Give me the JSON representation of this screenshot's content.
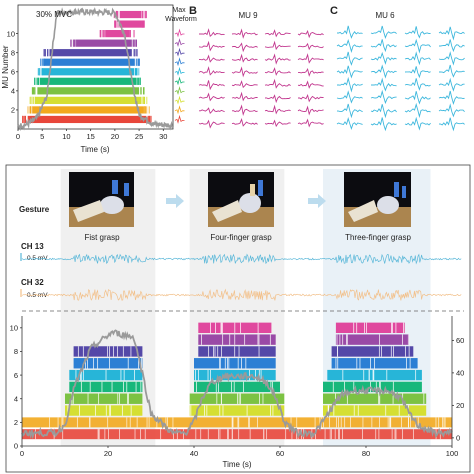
{
  "panel_a": {
    "title": "30% MVC",
    "legend_title_1": "Max",
    "legend_title_2": "Waveform"
  },
  "panel_b": {
    "letter": "B",
    "title": "MU 9"
  },
  "panel_c": {
    "letter": "C",
    "title": "MU 6"
  },
  "panel_d": {
    "gesture_label": "Gesture",
    "gestures": [
      "Fist grasp",
      "Four-finger grasp",
      "Three-finger grasp"
    ],
    "channels": [
      {
        "name": "CH 13",
        "scale": "0.5 mV",
        "color": "#5bb8d9"
      },
      {
        "name": "CH 32",
        "scale": "0.5 mV",
        "color": "#f2c08a"
      }
    ]
  },
  "colors": {
    "mu": [
      "#e8463a",
      "#f2a81e",
      "#d5df33",
      "#7cc243",
      "#18b77b",
      "#27b5d8",
      "#2c7fd4",
      "#5448a8",
      "#9a4aa6",
      "#e0489e"
    ],
    "mu_a_top": "#e0489e",
    "pink_wave": "#c2388f",
    "blue_wave": "#3fb8dd",
    "force": "#999999",
    "arrow": "#bcdcee"
  },
  "chart_data": [
    {
      "type": "line",
      "panel": "A",
      "xlabel": "Time (s)",
      "ylabel": "MU Number",
      "xlim": [
        0,
        32
      ],
      "ylim": [
        0,
        13
      ],
      "xticks": [
        0,
        5,
        10,
        15,
        20,
        25,
        30
      ],
      "yticks": [
        2,
        4,
        6,
        8,
        10
      ],
      "force_level": "30% MVC",
      "force_x": [
        0,
        2,
        4,
        6,
        7,
        8,
        12,
        20,
        22,
        23.5,
        25,
        28,
        32
      ],
      "force_y": [
        0.3,
        0.5,
        1.2,
        3.5,
        8,
        12.2,
        12.3,
        12.2,
        10,
        5,
        1.5,
        0.5,
        0.4
      ],
      "spike_trains": [
        {
          "mu": 1,
          "start": 2.0,
          "end": 26.5
        },
        {
          "mu": 2,
          "start": 3.0,
          "end": 26.0
        },
        {
          "mu": 3,
          "start": 3.5,
          "end": 25.5
        },
        {
          "mu": 4,
          "start": 4.0,
          "end": 25.0
        },
        {
          "mu": 5,
          "start": 4.5,
          "end": 24.5
        },
        {
          "mu": 6,
          "start": 5.0,
          "end": 24.0
        },
        {
          "mu": 7,
          "start": 5.5,
          "end": 24.0
        },
        {
          "mu": 8,
          "start": 6.5,
          "end": 23.5
        },
        {
          "mu": 9,
          "start": 12.0,
          "end": 23.5
        },
        {
          "mu": 10,
          "start": 18.0,
          "end": 23.0
        },
        {
          "mu": 11,
          "start": 21.0,
          "end": 25.5
        },
        {
          "mu": 12,
          "start": 21.0,
          "end": 25.5
        }
      ]
    },
    {
      "type": "line",
      "panel": "D",
      "xlabel": "Time (s)",
      "xlim": [
        0,
        100
      ],
      "xticks": [
        0,
        20,
        40,
        60,
        80,
        100
      ],
      "ylim_left": [
        0,
        11
      ],
      "yticks_left": [
        0,
        2,
        4,
        6,
        8,
        10
      ],
      "ylim_right": [
        -5,
        75
      ],
      "yticks_right": [
        0,
        20,
        40,
        60
      ],
      "gesture_windows": [
        [
          9,
          31
        ],
        [
          39,
          61
        ],
        [
          70,
          95
        ]
      ],
      "force_x": [
        0,
        8,
        10,
        12,
        16,
        21,
        26,
        28,
        30,
        35,
        38,
        40,
        42,
        44,
        47,
        54,
        57,
        59,
        61,
        64,
        68,
        70,
        72,
        74,
        77,
        85,
        88,
        90,
        92,
        96,
        100
      ],
      "force_y": [
        3,
        3,
        8,
        30,
        55,
        65,
        62,
        40,
        15,
        3,
        3,
        10,
        25,
        34,
        38,
        38,
        34,
        25,
        10,
        3,
        3,
        10,
        18,
        26,
        29,
        29,
        25,
        15,
        8,
        3,
        3
      ],
      "spike_trains": [
        {
          "mu": 1,
          "segments": [
            [
              0,
              100
            ]
          ]
        },
        {
          "mu": 2,
          "segments": [
            [
              0,
              100
            ]
          ]
        },
        {
          "mu": 3,
          "segments": [
            [
              10,
              28
            ],
            [
              39,
              61
            ],
            [
              70,
              94
            ]
          ]
        },
        {
          "mu": 4,
          "segments": [
            [
              10,
              28
            ],
            [
              39,
              61
            ],
            [
              70,
              94
            ]
          ]
        },
        {
          "mu": 5,
          "segments": [
            [
              11,
              28
            ],
            [
              40,
              60
            ],
            [
              70,
              93
            ]
          ]
        },
        {
          "mu": 6,
          "segments": [
            [
              11,
              28
            ],
            [
              40,
              59
            ],
            [
              71,
              93
            ]
          ]
        },
        {
          "mu": 7,
          "segments": [
            [
              12,
              28
            ],
            [
              40,
              59
            ],
            [
              72,
              92
            ]
          ]
        },
        {
          "mu": 8,
          "segments": [
            [
              12,
              28
            ],
            [
              41,
              59
            ],
            [
              72,
              91
            ]
          ]
        },
        {
          "mu": 9,
          "segments": [
            [
              41,
              59
            ],
            [
              73,
              90
            ]
          ]
        },
        {
          "mu": 10,
          "segments": [
            [
              41,
              58
            ],
            [
              73,
              89
            ]
          ]
        }
      ]
    }
  ]
}
